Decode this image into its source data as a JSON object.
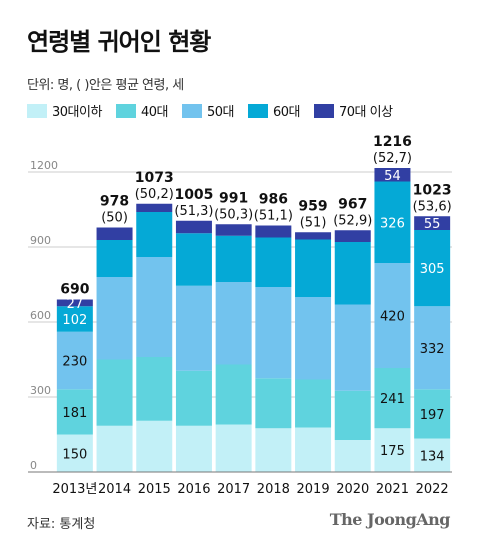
{
  "title": "연령별 귀어인 현황",
  "unit_note": "단위: 명, ( )안은 평균 연령, 세",
  "source": "자료: 통계청",
  "brand": "The JoongAng",
  "colors": {
    "30s_under": "#c2f0f7",
    "40s": "#5fd3de",
    "50s": "#72c3ee",
    "60s": "#05a9d6",
    "70s_over": "#313fa3",
    "grid": "#cccccc",
    "axis": "#777777"
  },
  "chart_data": {
    "type": "bar",
    "stacked": true,
    "categories": [
      "2013년",
      "2014",
      "2015",
      "2016",
      "2017",
      "2018",
      "2019",
      "2020",
      "2021",
      "2022"
    ],
    "series": [
      {
        "name": "30대이하",
        "color": "#c2f0f7",
        "values": [
          150,
          185,
          205,
          185,
          190,
          175,
          178,
          128,
          175,
          134
        ],
        "labels": [
          "150",
          "",
          "",
          "",
          "",
          "",
          "",
          "",
          "175",
          "134"
        ]
      },
      {
        "name": "40대",
        "color": "#5fd3de",
        "values": [
          181,
          265,
          255,
          220,
          240,
          200,
          192,
          197,
          241,
          197
        ],
        "labels": [
          "181",
          "",
          "",
          "",
          "",
          "",
          "",
          "",
          "241",
          "197"
        ]
      },
      {
        "name": "50대",
        "color": "#72c3ee",
        "values": [
          230,
          330,
          400,
          340,
          330,
          365,
          330,
          345,
          420,
          332
        ],
        "labels": [
          "230",
          "",
          "",
          "",
          "",
          "",
          "",
          "",
          "420",
          "332"
        ]
      },
      {
        "name": "60대",
        "color": "#05a9d6",
        "values": [
          102,
          148,
          180,
          210,
          185,
          198,
          230,
          250,
          326,
          305
        ],
        "labels": [
          "102",
          "",
          "",
          "",
          "",
          "",
          "",
          "",
          "326",
          "305"
        ]
      },
      {
        "name": "70대 이상",
        "color": "#313fa3",
        "values": [
          27,
          50,
          33,
          50,
          46,
          48,
          29,
          47,
          54,
          55
        ],
        "labels": [
          "27",
          "",
          "",
          "",
          "",
          "",
          "",
          "",
          "54",
          "55"
        ]
      }
    ],
    "totals": [
      "690",
      "978",
      "1073",
      "1005",
      "991",
      "986",
      "959",
      "967",
      "1216",
      "1023"
    ],
    "avg_ages": [
      "",
      "(50)",
      "(50,2)",
      "(51,3)",
      "(50,3)",
      "(51,1)",
      "(51)",
      "(52,9)",
      "(52,7)",
      "(53,6)"
    ],
    "ylim": [
      0,
      1200
    ],
    "yticks": [
      0,
      300,
      600,
      900,
      1200
    ],
    "grid": true,
    "legend_position": "top"
  }
}
